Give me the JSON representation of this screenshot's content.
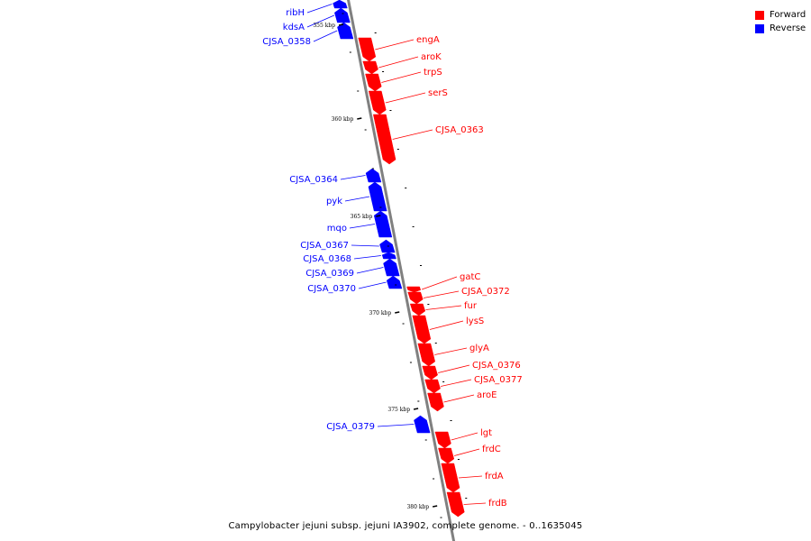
{
  "legend": {
    "items": [
      {
        "label": "Forward",
        "color": "#ff0000"
      },
      {
        "label": "Reverse",
        "color": "#0000ff"
      }
    ]
  },
  "caption": "Campylobacter jejuni subsp. jejuni IA3902, complete genome. - 0..1635045",
  "colors": {
    "forward": "#ff0000",
    "reverse": "#0000ff",
    "backbone": "#808080"
  },
  "ruler": {
    "ticks": [
      {
        "label": "355 kbp",
        "position_kbp": 355
      },
      {
        "label": "360 kbp",
        "position_kbp": 360
      },
      {
        "label": "365 kbp",
        "position_kbp": 365
      },
      {
        "label": "370 kbp",
        "position_kbp": 370
      },
      {
        "label": "375 kbp",
        "position_kbp": 375
      },
      {
        "label": "380 kbp",
        "position_kbp": 380
      }
    ]
  },
  "genes": [
    {
      "name": "ribH",
      "strand": "reverse"
    },
    {
      "name": "kdsA",
      "strand": "reverse"
    },
    {
      "name": "CJSA_0358",
      "strand": "reverse"
    },
    {
      "name": "engA",
      "strand": "forward"
    },
    {
      "name": "aroK",
      "strand": "forward"
    },
    {
      "name": "trpS",
      "strand": "forward"
    },
    {
      "name": "serS",
      "strand": "forward"
    },
    {
      "name": "CJSA_0363",
      "strand": "forward"
    },
    {
      "name": "CJSA_0364",
      "strand": "reverse"
    },
    {
      "name": "pyk",
      "strand": "reverse"
    },
    {
      "name": "mqo",
      "strand": "reverse"
    },
    {
      "name": "CJSA_0367",
      "strand": "reverse"
    },
    {
      "name": "CJSA_0368",
      "strand": "reverse"
    },
    {
      "name": "CJSA_0369",
      "strand": "reverse"
    },
    {
      "name": "CJSA_0370",
      "strand": "reverse"
    },
    {
      "name": "gatC",
      "strand": "forward"
    },
    {
      "name": "CJSA_0372",
      "strand": "forward"
    },
    {
      "name": "fur",
      "strand": "forward"
    },
    {
      "name": "lysS",
      "strand": "forward"
    },
    {
      "name": "glyA",
      "strand": "forward"
    },
    {
      "name": "CJSA_0376",
      "strand": "forward"
    },
    {
      "name": "CJSA_0377",
      "strand": "forward"
    },
    {
      "name": "aroE",
      "strand": "forward"
    },
    {
      "name": "CJSA_0379",
      "strand": "reverse"
    },
    {
      "name": "lgt",
      "strand": "forward"
    },
    {
      "name": "frdC",
      "strand": "forward"
    },
    {
      "name": "frdA",
      "strand": "forward"
    },
    {
      "name": "frdB",
      "strand": "forward"
    }
  ]
}
